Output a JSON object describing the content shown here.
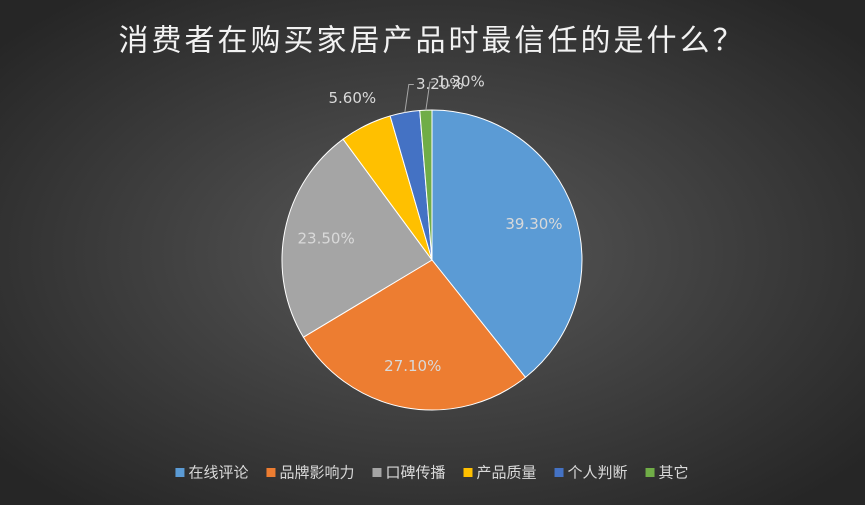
{
  "chart_data": {
    "type": "pie",
    "title": "消费者在购买家居产品时最信任的是什么？",
    "categories": [
      "在线评论",
      "品牌影响力",
      "口碑传播",
      "产品质量",
      "个人判断",
      "其它"
    ],
    "values": [
      39.3,
      27.1,
      23.5,
      5.6,
      3.2,
      1.3
    ],
    "value_labels": [
      "39.30%",
      "27.10%",
      "23.50%",
      "5.60%",
      "3.20%",
      "1.30%"
    ],
    "colors": [
      "#5b9bd5",
      "#ed7d31",
      "#a5a5a5",
      "#ffc000",
      "#4472c4",
      "#70ad47"
    ],
    "legend": "bottom"
  }
}
